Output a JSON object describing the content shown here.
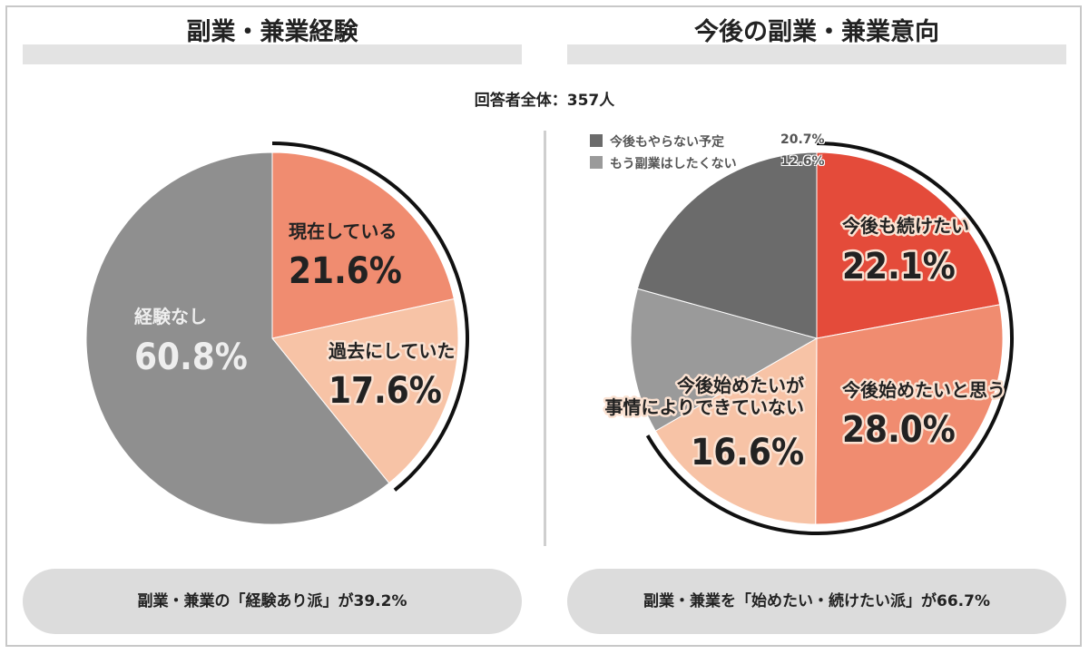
{
  "respondents": "回答者全体：357人",
  "chart_data": [
    {
      "type": "pie",
      "title": "副業・兼業経験",
      "summary": "副業・兼業の「経験あり派」が39.2%",
      "slices": [
        {
          "label": "現在している",
          "value": 21.6,
          "value_text": "21.6%",
          "color": "#f08c70",
          "text_color": "#222222"
        },
        {
          "label": "過去にしていた",
          "value": 17.6,
          "value_text": "17.6%",
          "color": "#f7c3a6",
          "text_color": "#222222"
        },
        {
          "label": "経験なし",
          "value": 60.8,
          "value_text": "60.8%",
          "color": "#8f8f8f",
          "text_color": "#eeeeee"
        }
      ]
    },
    {
      "type": "pie",
      "title": "今後の副業・兼業意向",
      "summary": "副業・兼業を「始めたい・続けたい派」が66.7%",
      "slices": [
        {
          "label": "今後も続けたい",
          "value": 22.1,
          "value_text": "22.1%",
          "color": "#e44b3a",
          "text_color": "#222222"
        },
        {
          "label": "今後始めたいと思う",
          "value": 28.0,
          "value_text": "28.0%",
          "color": "#f08c70",
          "text_color": "#222222"
        },
        {
          "label": "今後始めたいが 事情によりできていない",
          "label_lines": [
            "今後始めたいが",
            "事情によりできていない"
          ],
          "value": 16.6,
          "value_text": "16.6%",
          "color": "#f7c3a6",
          "text_color": "#222222"
        },
        {
          "label": "もう副業はしたくない",
          "value": 12.6,
          "value_text": "12.6%",
          "color": "#9a9a9a",
          "text_color": "#222222"
        },
        {
          "label": "今後もやらない予定",
          "value": 20.7,
          "value_text": "20.7%",
          "color": "#6b6b6b",
          "text_color": "#222222"
        }
      ],
      "legend": [
        {
          "label": "今後もやらない予定",
          "value_text": "20.7%",
          "color": "#6b6b6b"
        },
        {
          "label": "もう副業はしたくない",
          "value_text": "12.6%",
          "color": "#9a9a9a"
        }
      ]
    }
  ]
}
